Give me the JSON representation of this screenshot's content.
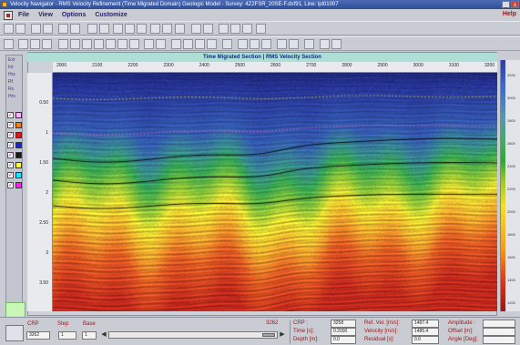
{
  "window": {
    "title": "Velocity Navigator - RMS Velocity Refinement (Time Migrated Domain) Geologic Model - Survey: 4Z2FSR_20SE-F.dsf91, Line: lpl01007",
    "minimize": "_",
    "close": "x"
  },
  "menu": {
    "items": [
      "File",
      "View",
      "Options",
      "Customize"
    ],
    "help": "Help"
  },
  "section": {
    "title": "Time Migrated Section | RMS Velocity Section",
    "x_ticks": [
      "2000",
      "2100",
      "2200",
      "2300",
      "2400",
      "2500",
      "2600",
      "2700",
      "2800",
      "2900",
      "3000",
      "3100",
      "3200"
    ],
    "y_ticks": [
      "0.50",
      "1",
      "1.50",
      "2",
      "2.50",
      "3",
      "3.50"
    ]
  },
  "left_panel": {
    "labels": [
      "Ext",
      "Int",
      "Hrz",
      "Rf",
      "Rs",
      "Hrs"
    ],
    "horizon_colors": [
      "#ffb3ff",
      "#ff7b00",
      "#d41a1a",
      "#1a24d4",
      "#1a1a1a",
      "#ffff20",
      "#20e4ff",
      "#ff20ff"
    ]
  },
  "velocity_scale": {
    "ticks": [
      "3200",
      "3000",
      "2800",
      "2600",
      "2400",
      "2200",
      "2000",
      "1800",
      "1600",
      "1400",
      "1200"
    ]
  },
  "colors": {
    "deep_blue": "#1f2a8f",
    "green": "#3aa43a",
    "yellow": "#f0e12c",
    "red": "#c8301e",
    "horizon_yellow": "#e8d840",
    "horizon_pink": "#ff66cc",
    "horizon_black": "#000000",
    "title_cyan": "#aedfd6"
  },
  "bottom": {
    "crp_label": "CRP",
    "step_label": "Step",
    "base_label": "Base",
    "crp_value": "3262",
    "step_value": "1",
    "base_value": "1",
    "slider_max": "3262",
    "readout": {
      "crp_label": "CRP :",
      "crp_value": "3258",
      "time_label": "Time [s]:",
      "time_value": "0.2000",
      "depth_label": "Depth [m]:",
      "depth_value": "0.0",
      "refvel_label": "Ref. Vel. [m/s]:",
      "refvel_value": "1487.4",
      "velocity_label": "Velocity [m/s]:",
      "velocity_value": "1485.4",
      "residual_label": "Residual [s]:",
      "residual_value": "0.0",
      "amplitude_label": "Amplitude :",
      "offset_label": "Offset [m]:",
      "angle_label": "Angle [Deg]:"
    }
  }
}
